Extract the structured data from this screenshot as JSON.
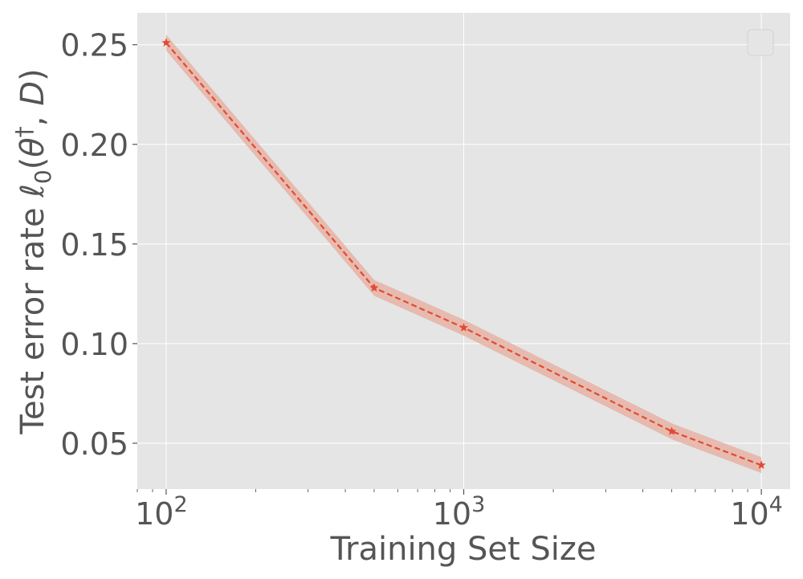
{
  "chart_data": {
    "type": "line",
    "x_scale": "log",
    "xlabel": "Training Set Size",
    "ylabel": {
      "prefix": "Test error rate ",
      "symbol": "ℓ",
      "subscript": "0",
      "open": "(",
      "theta": "θ",
      "sup": "†",
      "rest": ", ",
      "D": "D",
      "close": ")"
    },
    "xlim": [
      80,
      12500
    ],
    "ylim": [
      0.027,
      0.266
    ],
    "x_ticks": [
      {
        "value": 100,
        "base": "10",
        "exp": "2"
      },
      {
        "value": 1000,
        "base": "10",
        "exp": "3"
      },
      {
        "value": 10000,
        "base": "10",
        "exp": "4"
      }
    ],
    "y_ticks": [
      {
        "value": 0.05,
        "label": "0.05"
      },
      {
        "value": 0.1,
        "label": "0.10"
      },
      {
        "value": 0.15,
        "label": "0.15"
      },
      {
        "value": 0.2,
        "label": "0.20"
      },
      {
        "value": 0.25,
        "label": "0.25"
      }
    ],
    "grid": true,
    "legend": "top-right (empty)",
    "series": [
      {
        "x": [
          100,
          500,
          1000,
          5000,
          10000
        ],
        "y": [
          0.251,
          0.128,
          0.108,
          0.056,
          0.039
        ],
        "band": 0.004,
        "line_style": "dashed",
        "marker": "star",
        "color": "#E24A33",
        "band_color": "#E8B3A6"
      }
    ],
    "colors": {
      "background": "#E5E5E5",
      "grid": "#FFFFFF",
      "text": "#555555"
    }
  }
}
